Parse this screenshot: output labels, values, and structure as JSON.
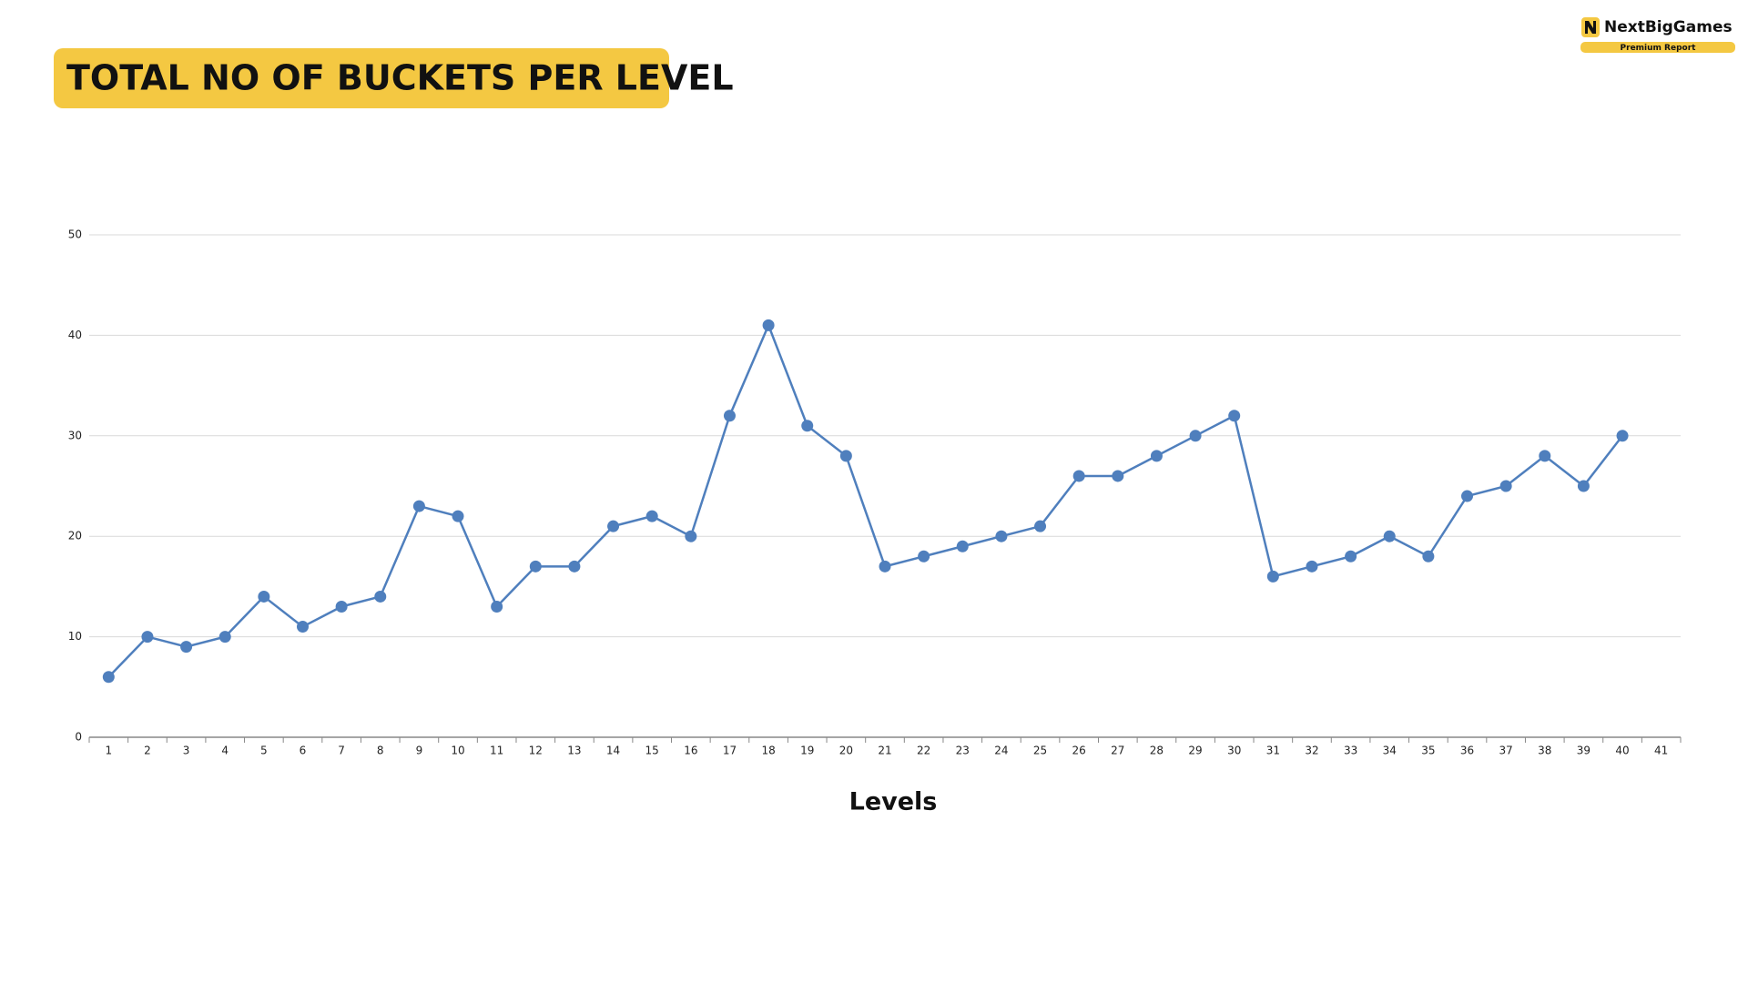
{
  "brand": {
    "name": "NextBigGames",
    "tag": "Premium Report"
  },
  "chart_data": {
    "type": "line",
    "title": "TOTAL NO OF BUCKETS PER LEVEL",
    "x_label": "Levels",
    "categories": [
      1,
      2,
      3,
      4,
      5,
      6,
      7,
      8,
      9,
      10,
      11,
      12,
      13,
      14,
      15,
      16,
      17,
      18,
      19,
      20,
      21,
      22,
      23,
      24,
      25,
      26,
      27,
      28,
      29,
      30,
      31,
      32,
      33,
      34,
      35,
      36,
      37,
      38,
      39,
      40,
      41
    ],
    "series": [
      {
        "name": "Buckets",
        "color": "#4f7fbd",
        "values": [
          6,
          10,
          9,
          10,
          14,
          11,
          13,
          14,
          23,
          22,
          13,
          17,
          17,
          21,
          22,
          20,
          32,
          41,
          31,
          28,
          17,
          18,
          19,
          20,
          21,
          26,
          26,
          28,
          30,
          32,
          16,
          17,
          18,
          20,
          18,
          24,
          25,
          28,
          25,
          30,
          null
        ]
      }
    ],
    "ylim": [
      0,
      50
    ],
    "yticks": [
      0,
      10,
      20,
      30,
      40,
      50
    ],
    "grid": true
  }
}
